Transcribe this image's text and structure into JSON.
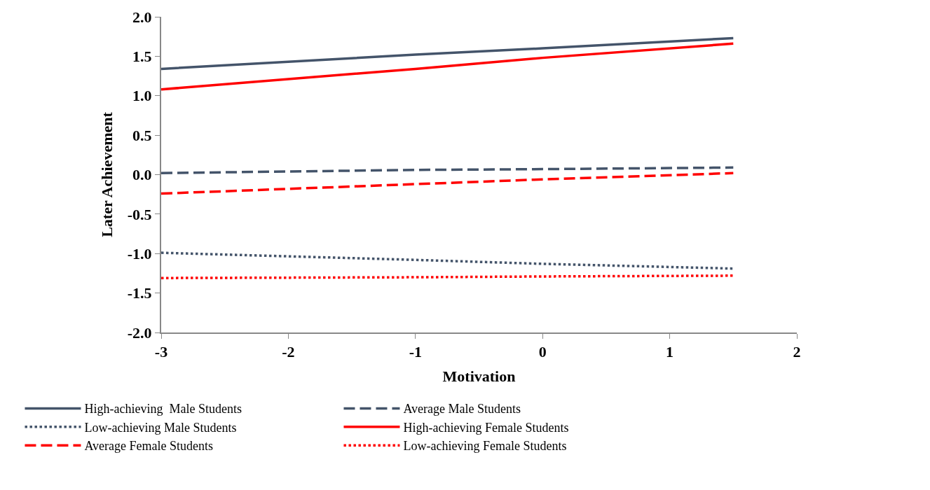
{
  "chart_data": {
    "type": "line",
    "xlabel": "Motivation",
    "ylabel": "Later Achievement",
    "x": [
      -3,
      -1,
      0,
      1.5
    ],
    "xlim": [
      -3,
      2
    ],
    "xticks": [
      -3,
      -2,
      -1,
      0,
      1,
      2
    ],
    "ylim": [
      -2,
      2
    ],
    "yticks": [
      {
        "value": 2,
        "label": "2.0"
      },
      {
        "value": 1.5,
        "label": "1.5"
      },
      {
        "value": 1,
        "label": "1.0"
      },
      {
        "value": 0.5,
        "label": "0.5"
      },
      {
        "value": 0,
        "label": "0.0"
      },
      {
        "value": -0.5,
        "label": "-0.5"
      },
      {
        "value": -1,
        "label": "-1.0"
      },
      {
        "value": -1.5,
        "label": "-1.5"
      },
      {
        "value": -2,
        "label": "-2.0"
      }
    ],
    "legend": "bottom",
    "marker": "none",
    "series": [
      {
        "name": "High-achieving  Male Students",
        "color": "#44546a",
        "line_style": "solid",
        "values": [
          1.34,
          1.52,
          1.6,
          1.73
        ]
      },
      {
        "name": "Average Male Students",
        "color": "#44546a",
        "line_style": "dashed",
        "values": [
          0.02,
          0.06,
          0.07,
          0.09
        ]
      },
      {
        "name": "Low-achieving Male Students",
        "color": "#44546a",
        "line_style": "dotted",
        "values": [
          -0.99,
          -1.08,
          -1.13,
          -1.19
        ]
      },
      {
        "name": "High-achieving Female Students",
        "color": "#ff0000",
        "line_style": "solid",
        "values": [
          1.08,
          1.34,
          1.48,
          1.66
        ]
      },
      {
        "name": "Average Female Students",
        "color": "#ff0000",
        "line_style": "dashed",
        "values": [
          -0.24,
          -0.12,
          -0.06,
          0.02
        ]
      },
      {
        "name": "Low-achieving Female Students",
        "color": "#ff0000",
        "line_style": "dotted",
        "values": [
          -1.31,
          -1.3,
          -1.29,
          -1.28
        ]
      }
    ]
  }
}
